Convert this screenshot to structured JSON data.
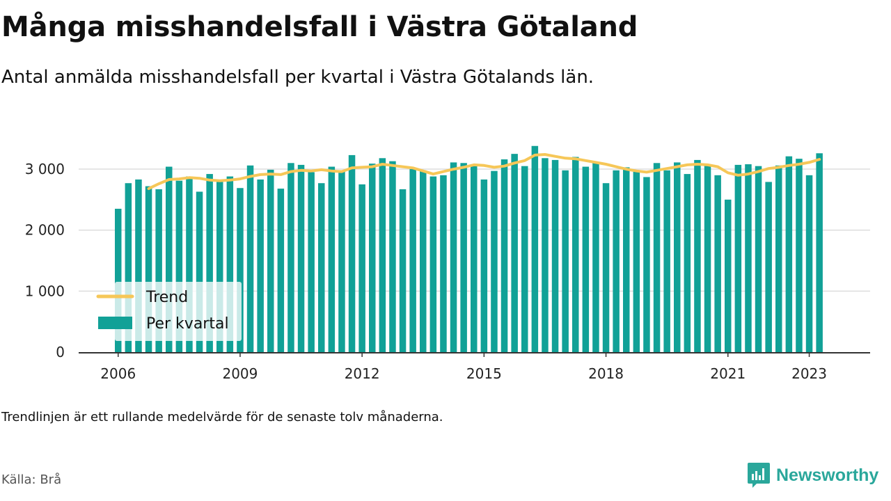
{
  "header": {
    "title": "Många misshandelsfall i Västra Götaland",
    "subtitle": "Antal anmälda misshandelsfall per kvartal i Västra Götalands län."
  },
  "footer": {
    "note": "Trendlinjen är ett rullande medelvärde för de senaste tolv månaderna.",
    "source": "Källa: Brå",
    "brand": "Newsworthy",
    "brand_icon": "bar-chart-speech-bubble-icon"
  },
  "colors": {
    "bars": "#11a197",
    "trend": "#f6c758",
    "brand": "#2aa79b",
    "grid": "#dddddd",
    "axis": "#333333"
  },
  "chart_data": {
    "type": "bar",
    "x_start": "2006 Q1",
    "x_end": "2023 Q2",
    "x_ticks": [
      "2006",
      "2009",
      "2012",
      "2015",
      "2018",
      "2021",
      "2023"
    ],
    "y_ticks": [
      "0",
      "1 000",
      "2 000",
      "3 000"
    ],
    "ylim": [
      0,
      3400
    ],
    "grid": "horizontal",
    "legend_position": "bottom-left",
    "series": [
      {
        "name": "Per kvartal",
        "type": "bar",
        "values": [
          2350,
          2770,
          2830,
          2720,
          2670,
          3040,
          2810,
          2880,
          2630,
          2920,
          2790,
          2880,
          2690,
          3060,
          2830,
          2990,
          2680,
          3100,
          3070,
          2950,
          2770,
          3040,
          2970,
          3230,
          2750,
          3090,
          3180,
          3130,
          2670,
          3000,
          2980,
          2880,
          2900,
          3110,
          3100,
          3070,
          2830,
          2970,
          3160,
          3250,
          3050,
          3380,
          3180,
          3150,
          2980,
          3200,
          3040,
          3110,
          2770,
          2980,
          3030,
          2960,
          2870,
          3100,
          2980,
          3110,
          2920,
          3150,
          3060,
          2900,
          2500,
          3070,
          3080,
          3050,
          2790,
          3060,
          3210,
          3170,
          2900,
          3260
        ]
      },
      {
        "name": "Trend",
        "type": "line",
        "values": [
          null,
          null,
          null,
          2680,
          2760,
          2830,
          2840,
          2860,
          2850,
          2820,
          2810,
          2820,
          2840,
          2880,
          2910,
          2920,
          2910,
          2960,
          2980,
          2970,
          2990,
          2970,
          2960,
          3020,
          3030,
          3040,
          3080,
          3060,
          3040,
          3020,
          2970,
          2920,
          2960,
          3000,
          3030,
          3070,
          3060,
          3030,
          3050,
          3100,
          3140,
          3230,
          3240,
          3210,
          3180,
          3170,
          3140,
          3110,
          3080,
          3040,
          3000,
          2970,
          2950,
          2980,
          3010,
          3040,
          3070,
          3080,
          3070,
          3040,
          2940,
          2900,
          2920,
          2960,
          3010,
          3030,
          3060,
          3080,
          3110,
          3160
        ]
      }
    ]
  }
}
